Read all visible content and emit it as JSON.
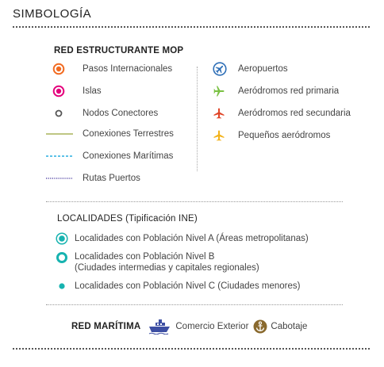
{
  "title": "SIMBOLOGÍA",
  "mop": {
    "heading": "RED ESTRUCTURANTE MOP",
    "items": [
      {
        "label": "Pasos Internacionales",
        "icon": "orange-ring-icon",
        "color": "#f26b21"
      },
      {
        "label": "Islas",
        "icon": "magenta-ring-icon",
        "color": "#e4007c"
      },
      {
        "label": "Nodos Conectores",
        "icon": "grey-ring-icon",
        "color": "#555555"
      },
      {
        "label": "Conexiones Terrestres",
        "icon": "olive-line-icon",
        "color": "#a8b35a"
      },
      {
        "label": "Conexiones Marítimas",
        "icon": "cyan-dashed-line-icon",
        "color": "#29aee0"
      },
      {
        "label": "Rutas Puertos",
        "icon": "purple-dotted-line-icon",
        "color": "#5b4fa8"
      }
    ],
    "airports": [
      {
        "label": "Aeropuertos",
        "icon": "airport-circle-icon",
        "color": "#2e6fb7"
      },
      {
        "label": "Aeródromos red primaria",
        "icon": "plane-icon",
        "color": "#7ac143"
      },
      {
        "label": "Aeródromos red secundaria",
        "icon": "plane-icon",
        "color": "#e04527"
      },
      {
        "label": "Pequeños aeródromos",
        "icon": "plane-icon",
        "color": "#f3b31b"
      }
    ]
  },
  "localidades": {
    "heading": "LOCALIDADES (Tipificación INE)",
    "items": [
      {
        "label": "Localidades con Población Nivel A (Áreas metropolitanas)",
        "icon": "teal-double-ring-icon",
        "color": "#17b3b0"
      },
      {
        "label": "Localidades con Población Nivel B",
        "label2": "(Ciudades intermedias y capitales regionales)",
        "icon": "teal-ring-icon",
        "color": "#17b3b0"
      },
      {
        "label": "Localidades con Población Nivel C (Ciudades menores)",
        "icon": "teal-dot-icon",
        "color": "#17b3b0"
      }
    ]
  },
  "maritima": {
    "heading": "RED MARÍTIMA",
    "items": [
      {
        "label": "Comercio Exterior",
        "icon": "ship-icon",
        "color": "#3d4fa3"
      },
      {
        "label": "Cabotaje",
        "icon": "anchor-icon",
        "color": "#8a6a2e"
      }
    ]
  }
}
